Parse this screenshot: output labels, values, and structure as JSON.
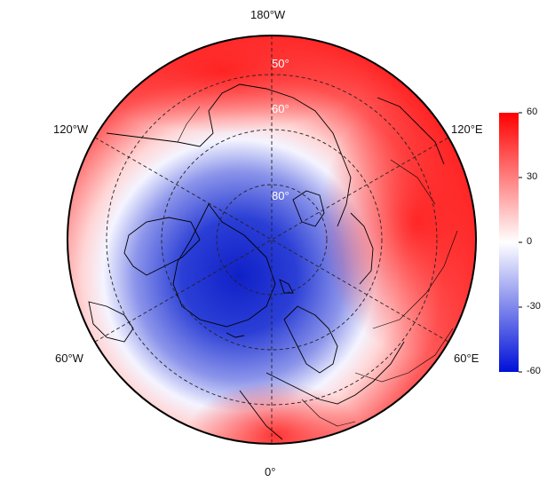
{
  "map": {
    "projection": "north-polar-stereographic",
    "longitude_labels": {
      "top": "180°W",
      "bottom": "0°",
      "upper_left": "120°W",
      "upper_right": "120°E",
      "lower_left": "60°W",
      "lower_right": "60°E"
    },
    "latitude_labels": [
      "50°",
      "60°",
      "80°"
    ],
    "gridlines": "dashed",
    "coastlines": true,
    "country_borders": true
  },
  "colorbar": {
    "ticks": [
      "60",
      "30",
      "0",
      "-30",
      "-60"
    ],
    "min": -60,
    "max": 60,
    "colors": [
      "#0010d8",
      "#ffffff",
      "#ff0000"
    ]
  },
  "field": {
    "description_of_pattern": "",
    "pattern": "negative anomaly centered over Greenland/Arctic, positive ring at mid-latitudes"
  }
}
